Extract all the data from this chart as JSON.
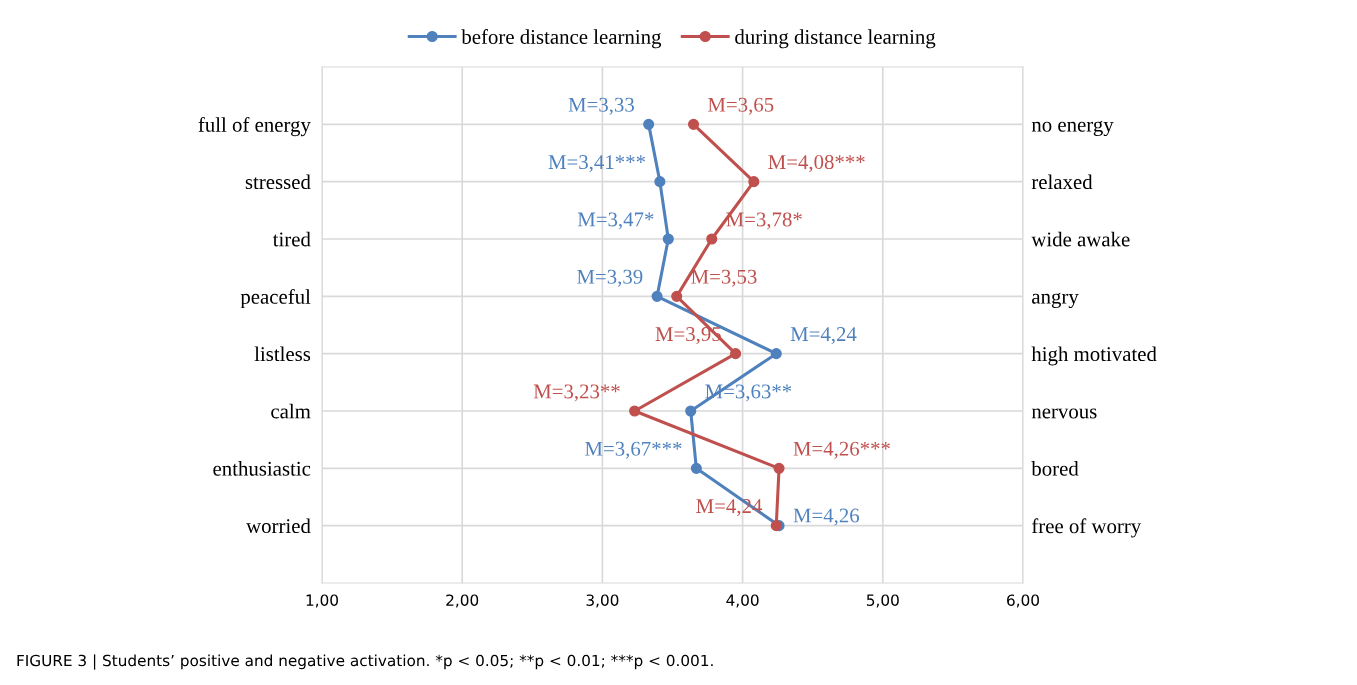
{
  "chart_data": {
    "type": "line",
    "orientation": "horizontal",
    "categories": [
      "full of energy",
      "stressed",
      "tired",
      "peaceful",
      "listless",
      "calm",
      "enthusiastic",
      "worried"
    ],
    "y2_categories": [
      "no energy",
      "relaxed",
      "wide awake",
      "angry",
      "high motivated",
      "nervous",
      "bored",
      "free of worry"
    ],
    "series": [
      {
        "name": "before distance learning",
        "color": "#4f81bd",
        "values": [
          3.33,
          3.41,
          3.47,
          3.39,
          4.24,
          3.63,
          3.67,
          4.26
        ],
        "value_labels": [
          "M=3,33",
          "M=3,41***",
          "M=3,47*",
          "M=3,39",
          "M=4,24",
          "M=3,63**",
          "M=3,67***",
          "M=4,26"
        ]
      },
      {
        "name": "during distance learning",
        "color": "#c0504d",
        "values": [
          3.65,
          4.08,
          3.78,
          3.53,
          3.95,
          3.23,
          4.26,
          4.24
        ],
        "value_labels": [
          "M=3,65",
          "M=4,08***",
          "M=3,78*",
          "M=3,53",
          "M=3,95",
          "M=3,23**",
          "M=4,26***",
          "M=4,24"
        ]
      }
    ],
    "xlim": [
      1,
      6
    ],
    "xticks": [
      {
        "value": 1,
        "label": "1,00"
      },
      {
        "value": 2,
        "label": "2,00"
      },
      {
        "value": 3,
        "label": "3,00"
      },
      {
        "value": 4,
        "label": "4,00"
      },
      {
        "value": 5,
        "label": "5,00"
      },
      {
        "value": 6,
        "label": "6,00"
      }
    ],
    "grid": true,
    "legend": "top",
    "marker": "circle",
    "line_style": "solid",
    "annotations": [
      "FIGURE 3 | Students’ positive and negative activation. *p < 0.05; **p < 0.01; ***p < 0.001."
    ]
  }
}
